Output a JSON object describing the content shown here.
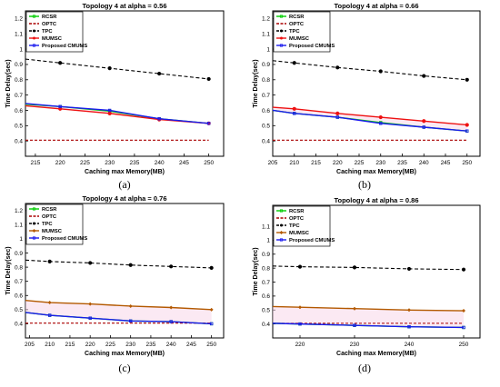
{
  "chart_data": [
    {
      "type": "line",
      "title": "Topology 4 at alpha = 0.56",
      "xlabel": "Caching max Memory(MB)",
      "ylabel": "Time Delay(sec)",
      "xlim": [
        213,
        253
      ],
      "ylim": [
        0.3,
        1.25
      ],
      "xticks": [
        215,
        220,
        225,
        230,
        235,
        240,
        245,
        250
      ],
      "yticks": [
        0.4,
        0.5,
        0.6,
        0.7,
        0.8,
        0.9,
        1,
        1.1,
        1.2
      ],
      "grid": false,
      "legend_position": "top-left",
      "caption": "(a)",
      "series": [
        {
          "name": "RCSR",
          "color": "#00cc00",
          "dash": "solid",
          "marker": "square",
          "x": [
            213,
            220,
            230,
            240,
            250
          ],
          "y": [
            0.64,
            0.625,
            0.595,
            0.545,
            0.515
          ]
        },
        {
          "name": "OPTC",
          "color": "#aa0000",
          "dash": "dashed",
          "marker": "none",
          "x": [
            213,
            250
          ],
          "y": [
            0.405,
            0.405
          ]
        },
        {
          "name": "TPC",
          "color": "#000000",
          "dash": "dashed",
          "marker": "circle",
          "x": [
            213,
            220,
            230,
            240,
            250
          ],
          "y": [
            0.935,
            0.91,
            0.875,
            0.84,
            0.805
          ]
        },
        {
          "name": "MUMSC",
          "color": "#ee1111",
          "dash": "solid",
          "marker": "circle",
          "x": [
            213,
            220,
            230,
            240,
            250
          ],
          "y": [
            0.63,
            0.61,
            0.58,
            0.54,
            0.515
          ]
        },
        {
          "name": "Proposed CMUMS",
          "color": "#1a1aee",
          "dash": "solid",
          "marker": "square",
          "x": [
            213,
            220,
            230,
            240,
            250
          ],
          "y": [
            0.645,
            0.625,
            0.6,
            0.545,
            0.515
          ]
        }
      ]
    },
    {
      "type": "line",
      "title": "Topology 4 at alpha = 0.66",
      "xlabel": "Caching max Memory(MB)",
      "ylabel": "Time Delay(sec)",
      "xlim": [
        205,
        253
      ],
      "ylim": [
        0.3,
        1.25
      ],
      "xticks": [
        205,
        210,
        215,
        220,
        225,
        230,
        235,
        240,
        245,
        250
      ],
      "yticks": [
        0.4,
        0.5,
        0.6,
        0.7,
        0.8,
        0.9,
        1,
        1.1,
        1.2
      ],
      "grid": false,
      "legend_position": "top-left",
      "caption": "(b)",
      "series": [
        {
          "name": "RCSR",
          "color": "#00cc00",
          "dash": "solid",
          "marker": "square",
          "x": [
            205,
            210,
            220,
            230,
            240,
            250
          ],
          "y": [
            0.6,
            0.58,
            0.555,
            0.52,
            0.49,
            0.465
          ]
        },
        {
          "name": "OPTC",
          "color": "#aa0000",
          "dash": "dashed",
          "marker": "none",
          "x": [
            205,
            250
          ],
          "y": [
            0.405,
            0.405
          ]
        },
        {
          "name": "TPC",
          "color": "#000000",
          "dash": "dashed",
          "marker": "circle",
          "x": [
            205,
            210,
            220,
            230,
            240,
            250
          ],
          "y": [
            0.925,
            0.91,
            0.88,
            0.855,
            0.825,
            0.8
          ]
        },
        {
          "name": "MUMSC",
          "color": "#ee1111",
          "dash": "solid",
          "marker": "circle",
          "x": [
            205,
            210,
            220,
            230,
            240,
            250
          ],
          "y": [
            0.62,
            0.61,
            0.58,
            0.555,
            0.53,
            0.505
          ]
        },
        {
          "name": "Proposed CMUMS",
          "color": "#1a1aee",
          "dash": "solid",
          "marker": "square",
          "x": [
            205,
            210,
            220,
            230,
            240,
            250
          ],
          "y": [
            0.6,
            0.58,
            0.555,
            0.515,
            0.49,
            0.465
          ]
        }
      ]
    },
    {
      "type": "line",
      "title": "Topology 4 at alpha = 0.76",
      "xlabel": "Caching max Memory(MB)",
      "ylabel": "Time Delay(sec)",
      "xlim": [
        204,
        253
      ],
      "ylim": [
        0.3,
        1.25
      ],
      "xticks": [
        205,
        210,
        215,
        220,
        225,
        230,
        235,
        240,
        245,
        250
      ],
      "yticks": [
        0.4,
        0.5,
        0.6,
        0.7,
        0.8,
        0.9,
        1,
        1.1,
        1.2
      ],
      "grid": false,
      "legend_position": "top-left",
      "caption": "(c)",
      "series": [
        {
          "name": "RCSR",
          "color": "#00cc00",
          "dash": "solid",
          "marker": "square",
          "x": [
            204,
            210,
            220,
            230,
            240,
            250
          ],
          "y": [
            0.48,
            0.46,
            0.44,
            0.42,
            0.415,
            0.4
          ]
        },
        {
          "name": "OPTC",
          "color": "#aa0000",
          "dash": "dashed",
          "marker": "none",
          "x": [
            204,
            250
          ],
          "y": [
            0.405,
            0.405
          ]
        },
        {
          "name": "TPC",
          "color": "#000000",
          "dash": "dashed",
          "marker": "circle",
          "x": [
            204,
            210,
            220,
            230,
            240,
            250
          ],
          "y": [
            0.85,
            0.84,
            0.83,
            0.815,
            0.805,
            0.795
          ]
        },
        {
          "name": "MUMSC",
          "color": "#b35900",
          "dash": "solid",
          "marker": "diamond",
          "x": [
            204,
            210,
            220,
            230,
            240,
            250
          ],
          "y": [
            0.565,
            0.55,
            0.54,
            0.525,
            0.515,
            0.5
          ]
        },
        {
          "name": "Proposed CMUMS",
          "color": "#1a1aee",
          "dash": "solid",
          "marker": "square",
          "x": [
            204,
            210,
            220,
            230,
            240,
            250
          ],
          "y": [
            0.48,
            0.46,
            0.44,
            0.42,
            0.415,
            0.4
          ]
        }
      ]
    },
    {
      "type": "line",
      "title": "Topology 4 at alpha = 0.86",
      "xlabel": "Caching max Memory(MB)",
      "ylabel": "Time Delay(sec)",
      "xlim": [
        215,
        253
      ],
      "ylim": [
        0.3,
        1.25
      ],
      "xticks": [
        220,
        230,
        240,
        250
      ],
      "yticks": [
        0.4,
        0.5,
        0.6,
        0.7,
        0.8,
        0.9,
        1,
        1.1
      ],
      "grid": false,
      "legend_position": "top-left",
      "caption": "(d)",
      "series": [
        {
          "name": "RCSR",
          "color": "#00cc00",
          "dash": "solid",
          "marker": "square",
          "x": [
            215,
            220,
            230,
            240,
            250
          ],
          "y": [
            0.405,
            0.4,
            0.39,
            0.38,
            0.375
          ]
        },
        {
          "name": "OPTC",
          "color": "#aa0000",
          "dash": "dashed",
          "marker": "none",
          "x": [
            215,
            250
          ],
          "y": [
            0.405,
            0.405
          ]
        },
        {
          "name": "TPC",
          "color": "#000000",
          "dash": "dashed",
          "marker": "circle",
          "x": [
            215,
            220,
            230,
            240,
            250
          ],
          "y": [
            0.815,
            0.81,
            0.805,
            0.795,
            0.79
          ]
        },
        {
          "name": "MUMSC",
          "color": "#b35900",
          "dash": "solid",
          "marker": "diamond",
          "x": [
            215,
            220,
            230,
            240,
            250
          ],
          "y": [
            0.525,
            0.52,
            0.51,
            0.5,
            0.495
          ]
        },
        {
          "name": "Proposed CMUMS",
          "color": "#1a1aee",
          "dash": "solid",
          "marker": "square",
          "x": [
            215,
            220,
            230,
            240,
            250
          ],
          "y": [
            0.405,
            0.4,
            0.39,
            0.38,
            0.375
          ]
        }
      ]
    }
  ]
}
